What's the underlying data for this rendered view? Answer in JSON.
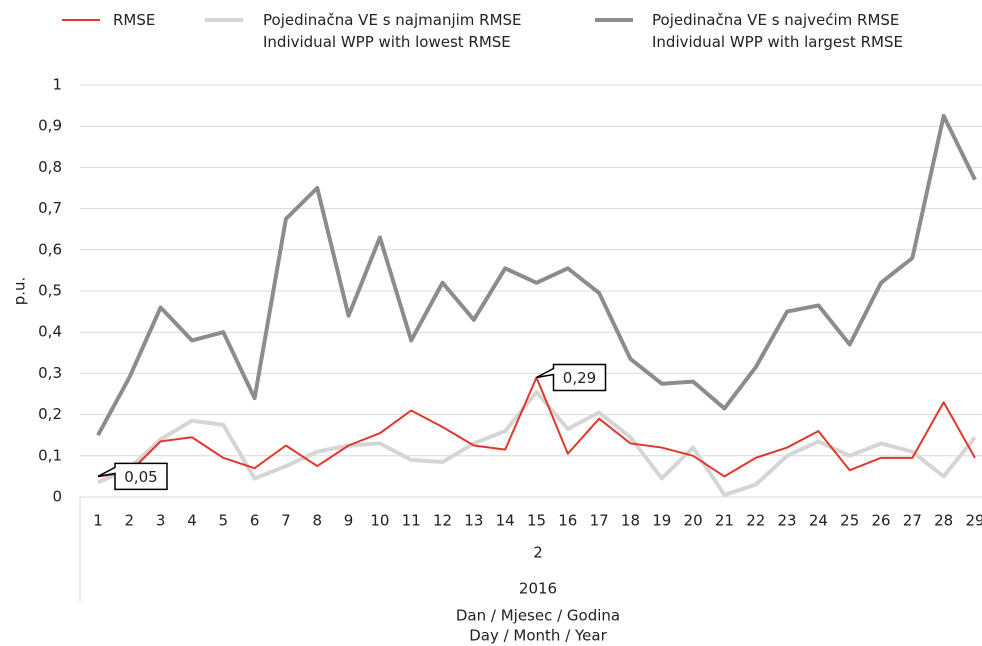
{
  "chart_data": {
    "type": "line",
    "y_label": "p.u.",
    "x_label": [
      "Dan / Mjesec / Godina",
      "Day / Month / Year"
    ],
    "month_label": "2",
    "year_label": "2016",
    "categories": [
      "1",
      "2",
      "3",
      "4",
      "5",
      "6",
      "7",
      "8",
      "9",
      "10",
      "11",
      "12",
      "13",
      "14",
      "15",
      "16",
      "17",
      "18",
      "19",
      "20",
      "21",
      "22",
      "23",
      "24",
      "25",
      "26",
      "27",
      "28",
      "29"
    ],
    "series": [
      {
        "name": "RMSE",
        "color": "#e0382c",
        "width": 2,
        "values": [
          0.05,
          0.06,
          0.135,
          0.145,
          0.095,
          0.07,
          0.125,
          0.075,
          0.125,
          0.155,
          0.21,
          0.17,
          0.125,
          0.115,
          0.29,
          0.105,
          0.19,
          0.13,
          0.12,
          0.1,
          0.05,
          0.095,
          0.12,
          0.16,
          0.065,
          0.095,
          0.095,
          0.23,
          0.095
        ],
        "value_labels": [
          "0,05",
          null,
          null,
          null,
          null,
          null,
          null,
          null,
          null,
          null,
          null,
          null,
          null,
          null,
          "0,29",
          null,
          null,
          null,
          null,
          null,
          null,
          null,
          null,
          null,
          null,
          null,
          null,
          null,
          null
        ]
      },
      {
        "name": "Pojedinačna VE s najmanjim RMSE\nIndividual WPP with lowest RMSE",
        "color": "#d5d5d5",
        "width": 4,
        "values": [
          0.035,
          0.07,
          0.14,
          0.185,
          0.175,
          0.045,
          0.075,
          0.11,
          0.125,
          0.13,
          0.09,
          0.085,
          0.13,
          0.16,
          0.255,
          0.165,
          0.205,
          0.145,
          0.045,
          0.12,
          0.005,
          0.03,
          0.1,
          0.135,
          0.1,
          0.13,
          0.11,
          0.05,
          0.145
        ]
      },
      {
        "name": "Pojedinačna VE s najvećim RMSE\nIndividual WPP with largest RMSE",
        "color": "#8c8c8c",
        "width": 4,
        "values": [
          0.15,
          0.29,
          0.46,
          0.38,
          0.4,
          0.24,
          0.675,
          0.75,
          0.44,
          0.63,
          0.38,
          0.52,
          0.43,
          0.555,
          0.52,
          0.555,
          0.495,
          0.335,
          0.275,
          0.28,
          0.215,
          0.315,
          0.45,
          0.465,
          0.37,
          0.52,
          0.58,
          0.925,
          0.77
        ]
      }
    ],
    "ylim": [
      0,
      1
    ],
    "yticks": [
      0,
      {
        "value": 0.1,
        "label": "0,1"
      },
      {
        "value": 0.2,
        "label": "0,2"
      },
      {
        "value": 0.3,
        "label": "0,3"
      },
      {
        "value": 0.4,
        "label": "0,4"
      },
      {
        "value": 0.5,
        "label": "0,5"
      },
      {
        "value": 0.6,
        "label": "0,6"
      },
      {
        "value": 0.7,
        "label": "0,7"
      },
      {
        "value": 0.8,
        "label": "0,8"
      },
      {
        "value": 0.9,
        "label": "0,9"
      },
      1
    ],
    "grid": true
  }
}
